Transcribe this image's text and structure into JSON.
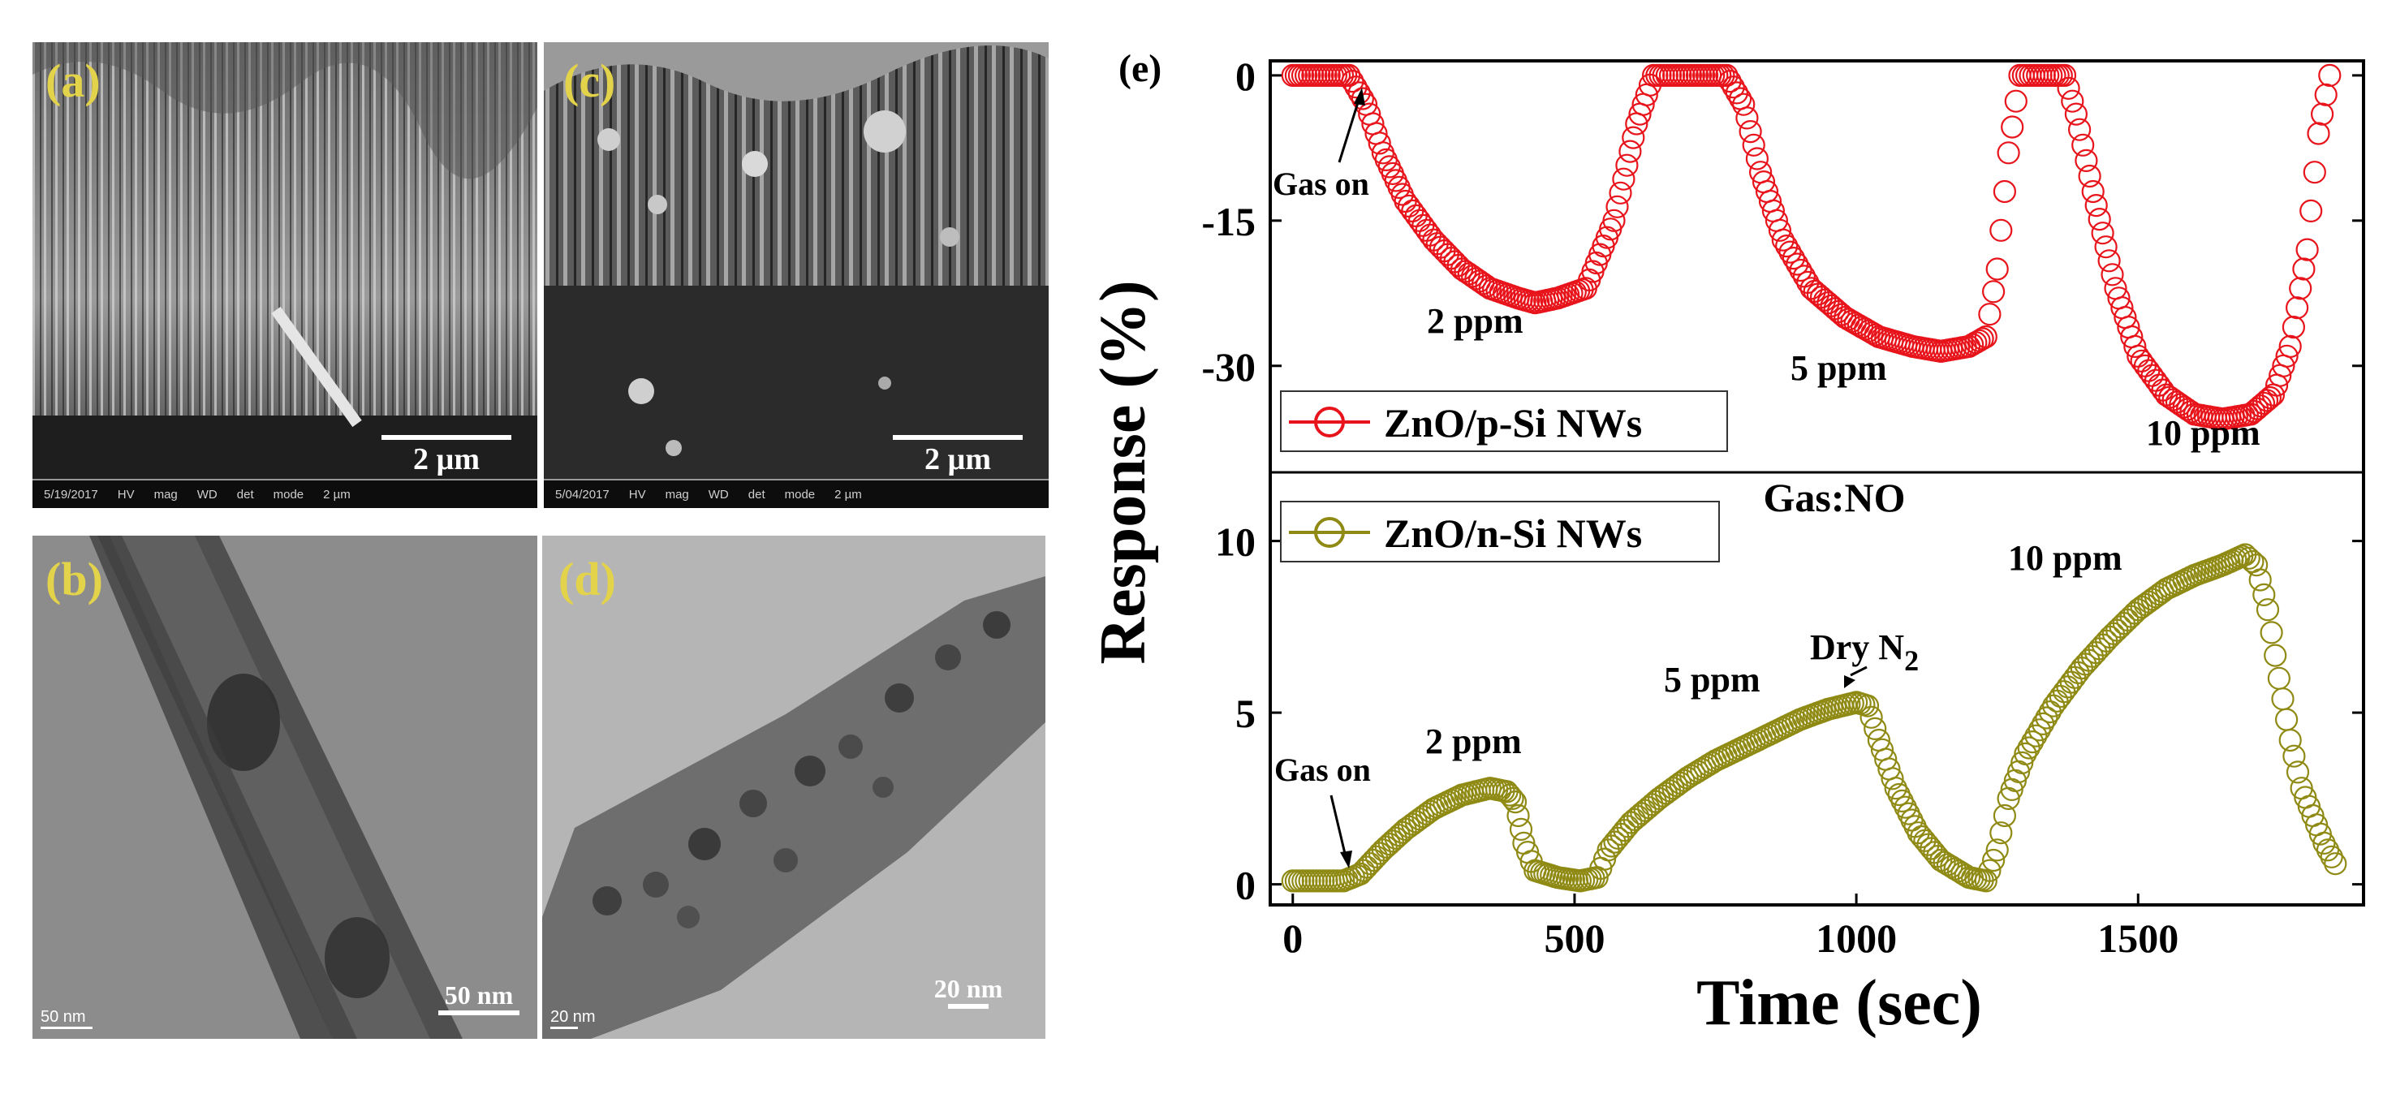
{
  "panels": {
    "a": {
      "label": "(a)",
      "scale": "2 µm",
      "meta": [
        "5/19/2017",
        "HV",
        "mag",
        "WD",
        "det",
        "mode",
        "2 µm"
      ]
    },
    "c": {
      "label": "(c)",
      "scale": "2 µm",
      "meta": [
        "5/04/2017",
        "HV",
        "mag",
        "WD",
        "det",
        "mode",
        "2 µm"
      ]
    },
    "b": {
      "label": "(b)",
      "scale": "50 nm",
      "scale_small": "50 nm"
    },
    "d": {
      "label": "(d)",
      "scale": "20 nm",
      "scale_small": "20 nm"
    }
  },
  "colors": {
    "red": "#e8141b",
    "olive": "#8f8a14",
    "label_yellow": "#e3d34a"
  },
  "chart_data": {
    "type": "line",
    "panel_label": "(e)",
    "xlabel": "Time (sec)",
    "ylabel": "Response (%)",
    "gas_label": "Gas:NO",
    "xlim": [
      -40,
      1900
    ],
    "x_ticks": [
      0,
      500,
      1000,
      1500
    ],
    "top": {
      "series_name": "ZnO/p-Si NWs",
      "ylim": [
        -41,
        1.5
      ],
      "y_ticks": [
        0,
        -15,
        -30
      ],
      "annotations": [
        "Gas on",
        "2 ppm",
        "5 ppm",
        "10 ppm"
      ],
      "points": [
        [
          0,
          0
        ],
        [
          100,
          0
        ],
        [
          130,
          -3
        ],
        [
          160,
          -8
        ],
        [
          200,
          -13
        ],
        [
          250,
          -17
        ],
        [
          300,
          -20
        ],
        [
          350,
          -22
        ],
        [
          400,
          -23
        ],
        [
          430,
          -23.5
        ],
        [
          470,
          -23
        ],
        [
          520,
          -22
        ],
        [
          570,
          -15
        ],
        [
          610,
          -5
        ],
        [
          640,
          0
        ],
        [
          700,
          0
        ],
        [
          770,
          0
        ],
        [
          800,
          -3
        ],
        [
          830,
          -10
        ],
        [
          870,
          -17
        ],
        [
          920,
          -22
        ],
        [
          980,
          -25
        ],
        [
          1040,
          -27
        ],
        [
          1100,
          -28
        ],
        [
          1150,
          -28.5
        ],
        [
          1200,
          -28
        ],
        [
          1230,
          -27
        ],
        [
          1250,
          -20
        ],
        [
          1270,
          -8
        ],
        [
          1290,
          0
        ],
        [
          1340,
          0
        ],
        [
          1370,
          0
        ],
        [
          1390,
          -4
        ],
        [
          1420,
          -12
        ],
        [
          1460,
          -22
        ],
        [
          1500,
          -29
        ],
        [
          1550,
          -33
        ],
        [
          1600,
          -35
        ],
        [
          1650,
          -35.5
        ],
        [
          1700,
          -35
        ],
        [
          1740,
          -33
        ],
        [
          1770,
          -28
        ],
        [
          1800,
          -18
        ],
        [
          1820,
          -6
        ],
        [
          1840,
          0
        ]
      ]
    },
    "bottom": {
      "series_name": "ZnO/n-Si NWs",
      "ylim": [
        -0.6,
        12
      ],
      "y_ticks": [
        0,
        5,
        10
      ],
      "annotations": [
        "Gas on",
        "2 ppm",
        "5 ppm",
        "Dry N",
        "2",
        "10 ppm"
      ],
      "points": [
        [
          0,
          0.1
        ],
        [
          90,
          0.1
        ],
        [
          120,
          0.3
        ],
        [
          160,
          1.0
        ],
        [
          200,
          1.6
        ],
        [
          250,
          2.2
        ],
        [
          300,
          2.6
        ],
        [
          350,
          2.8
        ],
        [
          380,
          2.7
        ],
        [
          395,
          2.4
        ],
        [
          410,
          1.2
        ],
        [
          430,
          0.4
        ],
        [
          470,
          0.2
        ],
        [
          510,
          0.1
        ],
        [
          540,
          0.2
        ],
        [
          560,
          1.0
        ],
        [
          600,
          1.8
        ],
        [
          650,
          2.5
        ],
        [
          700,
          3.1
        ],
        [
          750,
          3.6
        ],
        [
          800,
          4.0
        ],
        [
          850,
          4.4
        ],
        [
          900,
          4.8
        ],
        [
          950,
          5.1
        ],
        [
          1000,
          5.3
        ],
        [
          1020,
          5.2
        ],
        [
          1040,
          4.2
        ],
        [
          1070,
          2.8
        ],
        [
          1110,
          1.5
        ],
        [
          1150,
          0.7
        ],
        [
          1200,
          0.2
        ],
        [
          1230,
          0.1
        ],
        [
          1250,
          1.0
        ],
        [
          1270,
          2.5
        ],
        [
          1300,
          3.8
        ],
        [
          1350,
          5.2
        ],
        [
          1400,
          6.3
        ],
        [
          1450,
          7.2
        ],
        [
          1500,
          8.0
        ],
        [
          1550,
          8.6
        ],
        [
          1600,
          9.0
        ],
        [
          1650,
          9.3
        ],
        [
          1690,
          9.6
        ],
        [
          1710,
          9.3
        ],
        [
          1730,
          8.0
        ],
        [
          1750,
          6.0
        ],
        [
          1770,
          4.2
        ],
        [
          1790,
          2.8
        ],
        [
          1810,
          2.0
        ],
        [
          1830,
          1.2
        ],
        [
          1850,
          0.6
        ]
      ]
    }
  }
}
